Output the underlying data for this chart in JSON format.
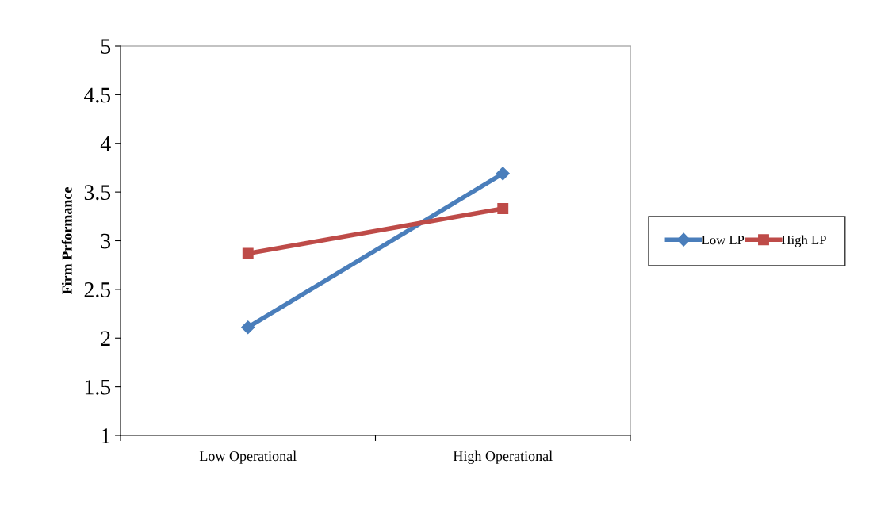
{
  "chart_data": {
    "type": "line",
    "ylabel": "Firm Prformance",
    "categories": [
      "Low Operational",
      "High Operational"
    ],
    "series": [
      {
        "name": "Low LP",
        "color": "#4a7ebb",
        "values": [
          2.11,
          3.69
        ],
        "marker": "diamond"
      },
      {
        "name": "High LP",
        "color": "#be4b48",
        "values": [
          2.87,
          3.33
        ],
        "marker": "square"
      }
    ],
    "ylim": [
      1,
      5
    ],
    "yticks": [
      1,
      1.5,
      2,
      2.5,
      3,
      3.5,
      4,
      4.5,
      5
    ],
    "grid": false,
    "legend": "right",
    "line_style": "solid"
  }
}
